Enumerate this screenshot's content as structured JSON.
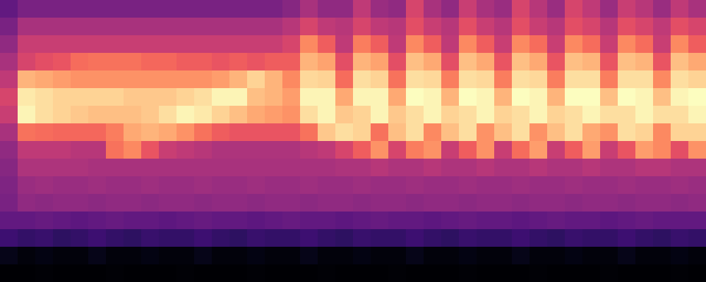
{
  "chart_data": {
    "type": "heatmap",
    "tick_labels": false,
    "cells": [
      [
        30,
        35,
        35,
        35,
        35,
        35,
        35,
        35,
        35,
        35,
        35,
        35,
        35,
        35,
        35,
        35,
        38,
        45,
        40,
        40,
        50,
        42,
        40,
        55,
        45,
        40,
        52,
        45,
        42,
        55,
        48,
        42,
        55,
        50,
        42,
        52,
        48,
        42,
        50,
        45
      ],
      [
        35,
        45,
        45,
        45,
        45,
        45,
        45,
        45,
        45,
        45,
        45,
        45,
        45,
        45,
        45,
        45,
        48,
        55,
        50,
        48,
        55,
        50,
        48,
        58,
        52,
        48,
        58,
        52,
        48,
        58,
        52,
        48,
        58,
        55,
        48,
        58,
        55,
        50,
        58,
        55
      ],
      [
        40,
        52,
        52,
        52,
        52,
        52,
        52,
        52,
        52,
        52,
        52,
        52,
        52,
        52,
        52,
        52,
        55,
        70,
        62,
        50,
        68,
        62,
        50,
        70,
        62,
        50,
        70,
        62,
        52,
        70,
        65,
        52,
        70,
        65,
        52,
        70,
        65,
        52,
        70,
        62
      ],
      [
        45,
        55,
        58,
        60,
        65,
        66,
        66,
        66,
        64,
        64,
        62,
        62,
        60,
        62,
        60,
        62,
        62,
        78,
        75,
        58,
        78,
        75,
        58,
        80,
        76,
        58,
        80,
        76,
        60,
        80,
        76,
        60,
        80,
        78,
        60,
        80,
        78,
        60,
        80,
        76
      ],
      [
        50,
        78,
        76,
        74,
        72,
        72,
        72,
        72,
        72,
        72,
        72,
        72,
        74,
        78,
        84,
        78,
        70,
        85,
        84,
        65,
        86,
        84,
        66,
        86,
        85,
        68,
        86,
        85,
        68,
        86,
        85,
        68,
        86,
        86,
        68,
        86,
        86,
        70,
        86,
        84
      ],
      [
        55,
        88,
        86,
        84,
        84,
        84,
        84,
        82,
        82,
        82,
        84,
        86,
        90,
        90,
        80,
        78,
        74,
        90,
        90,
        76,
        90,
        90,
        76,
        92,
        90,
        78,
        92,
        90,
        78,
        92,
        90,
        78,
        92,
        92,
        80,
        92,
        90,
        80,
        90,
        92
      ],
      [
        52,
        90,
        86,
        84,
        82,
        80,
        80,
        80,
        82,
        86,
        90,
        88,
        84,
        80,
        76,
        74,
        72,
        86,
        90,
        82,
        84,
        90,
        82,
        86,
        90,
        84,
        86,
        90,
        84,
        86,
        90,
        84,
        86,
        90,
        86,
        86,
        90,
        86,
        86,
        90
      ],
      [
        45,
        66,
        65,
        64,
        64,
        64,
        68,
        76,
        78,
        76,
        72,
        66,
        62,
        60,
        60,
        60,
        60,
        66,
        82,
        86,
        84,
        66,
        80,
        86,
        70,
        80,
        86,
        72,
        80,
        86,
        72,
        80,
        86,
        76,
        72,
        86,
        84,
        70,
        84,
        84
      ],
      [
        40,
        50,
        50,
        50,
        48,
        48,
        66,
        70,
        60,
        52,
        50,
        48,
        46,
        46,
        46,
        46,
        46,
        48,
        50,
        55,
        62,
        72,
        55,
        68,
        72,
        52,
        62,
        72,
        52,
        65,
        74,
        52,
        62,
        74,
        52,
        60,
        74,
        70,
        58,
        72
      ],
      [
        38,
        46,
        46,
        46,
        46,
        45,
        45,
        45,
        45,
        45,
        45,
        45,
        45,
        45,
        45,
        45,
        45,
        45,
        45,
        46,
        46,
        48,
        46,
        46,
        48,
        46,
        46,
        48,
        46,
        46,
        48,
        46,
        46,
        48,
        46,
        46,
        48,
        48,
        46,
        46
      ],
      [
        36,
        42,
        43,
        42,
        42,
        43,
        42,
        42,
        43,
        42,
        42,
        43,
        42,
        42,
        43,
        42,
        42,
        43,
        42,
        42,
        43,
        42,
        42,
        43,
        42,
        42,
        43,
        42,
        42,
        43,
        42,
        42,
        43,
        42,
        42,
        43,
        42,
        42,
        43,
        42
      ],
      [
        35,
        40,
        39,
        40,
        40,
        39,
        40,
        40,
        39,
        40,
        40,
        39,
        40,
        40,
        39,
        40,
        40,
        39,
        40,
        40,
        39,
        40,
        40,
        39,
        40,
        40,
        39,
        40,
        40,
        39,
        40,
        40,
        39,
        40,
        40,
        39,
        40,
        40,
        39,
        40
      ],
      [
        30,
        30,
        31,
        30,
        29,
        30,
        31,
        30,
        30,
        29,
        30,
        31,
        30,
        30,
        29,
        30,
        31,
        30,
        30,
        29,
        30,
        31,
        30,
        30,
        29,
        30,
        31,
        30,
        30,
        29,
        30,
        31,
        30,
        30,
        29,
        30,
        31,
        30,
        30,
        30
      ],
      [
        22,
        20,
        21,
        19,
        20,
        22,
        20,
        19,
        21,
        20,
        20,
        22,
        20,
        19,
        21,
        20,
        20,
        22,
        20,
        19,
        21,
        20,
        20,
        22,
        20,
        19,
        21,
        20,
        20,
        22,
        20,
        19,
        21,
        20,
        20,
        22,
        20,
        19,
        21,
        20
      ],
      [
        8,
        6,
        7,
        6,
        6,
        8,
        6,
        6,
        7,
        6,
        6,
        8,
        6,
        6,
        7,
        6,
        6,
        8,
        6,
        6,
        7,
        6,
        6,
        8,
        6,
        6,
        7,
        6,
        6,
        8,
        6,
        6,
        7,
        6,
        6,
        8,
        6,
        6,
        7,
        6
      ],
      [
        4,
        4,
        5,
        4,
        4,
        4,
        5,
        4,
        4,
        4,
        5,
        4,
        4,
        4,
        5,
        4,
        4,
        4,
        5,
        4,
        4,
        4,
        5,
        4,
        4,
        4,
        5,
        4,
        4,
        4,
        5,
        4,
        4,
        4,
        5,
        4,
        4,
        4,
        5,
        4
      ]
    ]
  }
}
